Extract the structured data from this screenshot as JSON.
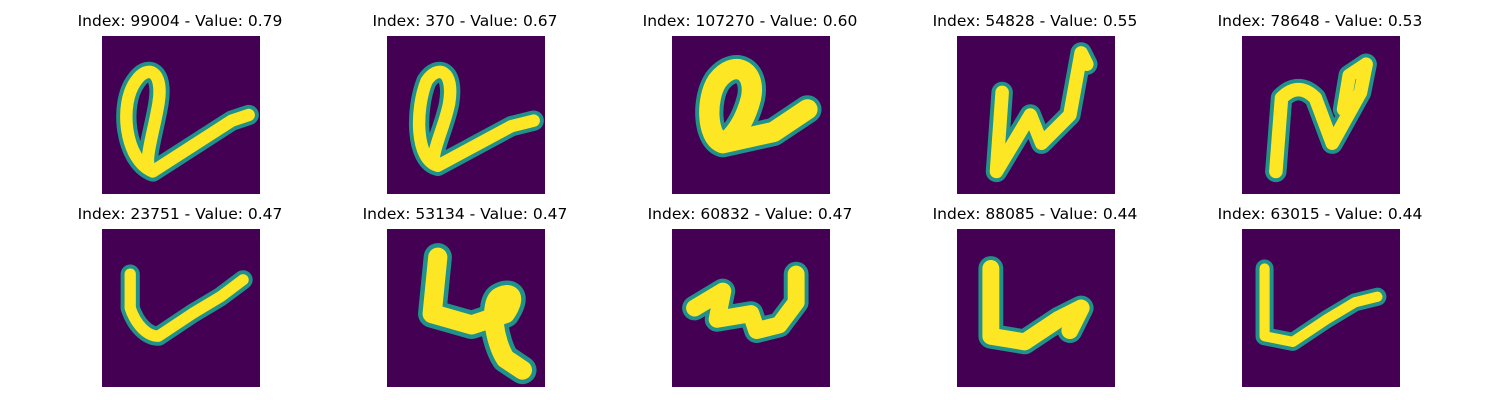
{
  "colors": {
    "background": "#440154",
    "stroke_core": "#fde725",
    "stroke_edge": "#21918c"
  },
  "panels": [
    {
      "title": "Index: 99004 - Value: 0.79",
      "index": 99004,
      "value": 0.79
    },
    {
      "title": "Index: 370 - Value: 0.67",
      "index": 370,
      "value": 0.67
    },
    {
      "title": "Index: 107270 - Value: 0.60",
      "index": 107270,
      "value": 0.6
    },
    {
      "title": "Index: 54828 - Value: 0.55",
      "index": 54828,
      "value": 0.55
    },
    {
      "title": "Index: 78648 - Value: 0.53",
      "index": 78648,
      "value": 0.53
    },
    {
      "title": "Index: 23751 - Value: 0.47",
      "index": 23751,
      "value": 0.47
    },
    {
      "title": "Index: 53134 - Value: 0.47",
      "index": 53134,
      "value": 0.47
    },
    {
      "title": "Index: 60832 - Value: 0.47",
      "index": 60832,
      "value": 0.47
    },
    {
      "title": "Index: 88085 - Value: 0.44",
      "index": 88085,
      "value": 0.44
    },
    {
      "title": "Index: 63015 - Value: 0.44",
      "index": 63015,
      "value": 0.44
    }
  ]
}
